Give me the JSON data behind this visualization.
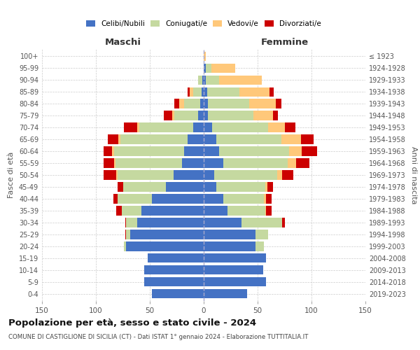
{
  "age_groups": [
    "0-4",
    "5-9",
    "10-14",
    "15-19",
    "20-24",
    "25-29",
    "30-34",
    "35-39",
    "40-44",
    "45-49",
    "50-54",
    "55-59",
    "60-64",
    "65-69",
    "70-74",
    "75-79",
    "80-84",
    "85-89",
    "90-94",
    "95-99",
    "100+"
  ],
  "birth_years": [
    "2019-2023",
    "2014-2018",
    "2009-2013",
    "2004-2008",
    "1999-2003",
    "1994-1998",
    "1989-1993",
    "1984-1988",
    "1979-1983",
    "1974-1978",
    "1969-1973",
    "1964-1968",
    "1959-1963",
    "1954-1958",
    "1949-1953",
    "1944-1948",
    "1939-1943",
    "1934-1938",
    "1929-1933",
    "1924-1928",
    "≤ 1923"
  ],
  "colors": {
    "celibi": "#4472c4",
    "coniugati": "#c5d9a0",
    "vedovi": "#ffc87a",
    "divorziati": "#cc0000"
  },
  "maschi": {
    "celibi": [
      48,
      55,
      55,
      52,
      72,
      68,
      62,
      58,
      48,
      35,
      28,
      20,
      18,
      15,
      10,
      5,
      3,
      2,
      1,
      0,
      0
    ],
    "coniugati": [
      0,
      0,
      0,
      0,
      2,
      4,
      10,
      18,
      32,
      40,
      52,
      62,
      65,
      62,
      50,
      22,
      15,
      8,
      4,
      0,
      0
    ],
    "vedovi": [
      0,
      0,
      0,
      0,
      0,
      0,
      0,
      0,
      0,
      0,
      1,
      1,
      2,
      2,
      2,
      2,
      5,
      3,
      0,
      0,
      0
    ],
    "divorziati": [
      0,
      0,
      0,
      0,
      0,
      1,
      1,
      5,
      4,
      5,
      12,
      10,
      8,
      10,
      12,
      8,
      4,
      2,
      0,
      0,
      0
    ]
  },
  "femmine": {
    "celibi": [
      40,
      58,
      55,
      58,
      48,
      48,
      35,
      22,
      18,
      12,
      10,
      18,
      14,
      12,
      8,
      4,
      4,
      3,
      2,
      2,
      0
    ],
    "coniugati": [
      0,
      0,
      0,
      0,
      8,
      12,
      38,
      35,
      38,
      45,
      58,
      60,
      65,
      60,
      52,
      42,
      38,
      30,
      12,
      5,
      0
    ],
    "vedovi": [
      0,
      0,
      0,
      0,
      0,
      0,
      0,
      1,
      2,
      2,
      5,
      8,
      12,
      18,
      15,
      18,
      25,
      28,
      40,
      22,
      2
    ],
    "divorziati": [
      0,
      0,
      0,
      0,
      0,
      0,
      2,
      5,
      5,
      5,
      10,
      12,
      14,
      12,
      10,
      5,
      5,
      4,
      0,
      0,
      0
    ]
  },
  "title": "Popolazione per età, sesso e stato civile - 2024",
  "subtitle": "COMUNE DI CASTIGLIONE DI SICILIA (CT) - Dati ISTAT 1° gennaio 2024 - Elaborazione TUTTITALIA.IT",
  "xlabel_left": "Maschi",
  "xlabel_right": "Femmine",
  "ylabel_left": "Fasce di età",
  "ylabel_right": "Anni di nascita",
  "xlim": 150,
  "bg_color": "#ffffff",
  "grid_color": "#cccccc",
  "legend_labels": [
    "Celibi/Nubili",
    "Coniugati/e",
    "Vedovi/e",
    "Divorziati/e"
  ]
}
